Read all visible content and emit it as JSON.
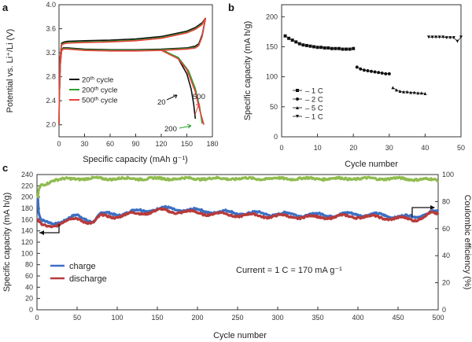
{
  "panel_labels": {
    "a": "a",
    "b": "b",
    "c": "c"
  },
  "chart_data": [
    {
      "panel": "a",
      "type": "line",
      "xlabel": "Specific capacity (mAh g⁻¹)",
      "ylabel": "Potential vs. Li⁺/Li (V)",
      "xlim": [
        0,
        180
      ],
      "ylim": [
        1.8,
        4.0
      ],
      "xticks": [
        "0",
        "30",
        "60",
        "90",
        "120",
        "150",
        "180"
      ],
      "yticks": [
        "2.0",
        "2.4",
        "2.8",
        "3.2",
        "3.6",
        "4.0"
      ],
      "legend_position": "center-left",
      "series": [
        {
          "name": "20th cycle",
          "base": "20",
          "sup": "th",
          "rest": " cycle",
          "color": "#111111",
          "charge_x": [
            0,
            0.5,
            1.2,
            3,
            6,
            10,
            30,
            60,
            90,
            120,
            150,
            160,
            168,
            172
          ],
          "charge_y": [
            2.0,
            2.6,
            3.1,
            3.36,
            3.38,
            3.39,
            3.4,
            3.41,
            3.43,
            3.47,
            3.56,
            3.62,
            3.7,
            3.78
          ],
          "discharge_x": [
            172,
            168,
            164,
            160,
            150,
            120,
            90,
            60,
            30,
            10,
            5,
            3,
            1.5,
            0.5
          ],
          "discharge_y": [
            3.78,
            3.5,
            3.35,
            3.31,
            3.28,
            3.26,
            3.25,
            3.25,
            3.26,
            3.28,
            3.28,
            3.25,
            3.0,
            2.5
          ],
          "discharge_tail_x": [
            120,
            140,
            150,
            155,
            158,
            160
          ],
          "discharge_tail_y": [
            3.26,
            3.1,
            2.85,
            2.6,
            2.35,
            2.1
          ]
        },
        {
          "name": "200th cycle",
          "base": "200",
          "sup": "th",
          "rest": " cycle",
          "color": "#2ca02c",
          "charge_x": [
            0,
            0.5,
            1.2,
            3,
            6,
            10,
            30,
            60,
            90,
            120,
            150,
            160,
            168,
            172
          ],
          "charge_y": [
            2.0,
            2.6,
            3.1,
            3.34,
            3.36,
            3.37,
            3.38,
            3.39,
            3.41,
            3.45,
            3.54,
            3.6,
            3.68,
            3.78
          ],
          "discharge_x": [
            172,
            168,
            164,
            160,
            150,
            120,
            90,
            60,
            30,
            10,
            5,
            3,
            1.5,
            0.5
          ],
          "discharge_y": [
            3.78,
            3.48,
            3.33,
            3.29,
            3.27,
            3.25,
            3.24,
            3.24,
            3.25,
            3.27,
            3.27,
            3.24,
            3.0,
            2.5
          ],
          "discharge_tail_x": [
            120,
            140,
            152,
            160,
            165,
            168
          ],
          "discharge_tail_y": [
            3.25,
            3.12,
            2.9,
            2.6,
            2.3,
            2.02
          ]
        },
        {
          "name": "500th cycle",
          "base": "500",
          "sup": "th",
          "rest": " cycle",
          "color": "#e8413c",
          "charge_x": [
            0,
            0.5,
            1.2,
            3,
            6,
            10,
            30,
            60,
            90,
            120,
            150,
            160,
            168,
            172
          ],
          "charge_y": [
            2.0,
            2.6,
            3.1,
            3.33,
            3.35,
            3.36,
            3.37,
            3.38,
            3.4,
            3.44,
            3.53,
            3.59,
            3.67,
            3.78
          ],
          "discharge_x": [
            172,
            168,
            164,
            160,
            150,
            120,
            90,
            60,
            30,
            10,
            5,
            3,
            1.5,
            0.5
          ],
          "discharge_y": [
            3.78,
            3.47,
            3.32,
            3.28,
            3.26,
            3.24,
            3.23,
            3.23,
            3.24,
            3.26,
            3.26,
            3.23,
            3.0,
            2.5
          ],
          "discharge_tail_x": [
            120,
            140,
            150,
            160,
            165,
            170
          ],
          "discharge_tail_y": [
            3.24,
            3.1,
            2.92,
            2.55,
            2.25,
            2.0
          ]
        }
      ],
      "annotations": [
        {
          "text": "20",
          "color": "#111111"
        },
        {
          "text": "200",
          "color": "#2ca02c"
        },
        {
          "text": "500",
          "color": "#e8413c"
        }
      ]
    },
    {
      "panel": "b",
      "type": "scatter",
      "xlabel": "Cycle number",
      "ylabel": "Specific capacity (mA h/g)",
      "xlim": [
        0,
        50
      ],
      "ylim": [
        0,
        220
      ],
      "xticks": [
        "0",
        "10",
        "20",
        "30",
        "40",
        "50"
      ],
      "yticks": [
        "0",
        "50",
        "100",
        "150",
        "200"
      ],
      "legend_position": "center-left",
      "series": [
        {
          "name": "1 C",
          "marker": "square",
          "x": [
            1,
            2,
            3,
            4,
            5,
            6,
            7,
            8,
            9,
            10,
            11,
            12,
            13,
            14,
            15,
            16,
            17,
            18,
            19,
            20
          ],
          "y": [
            168,
            164,
            161,
            158,
            155,
            153,
            152,
            151,
            150,
            149,
            149,
            148,
            148,
            147,
            147,
            147,
            146,
            146,
            146,
            147
          ]
        },
        {
          "name": "2 C",
          "marker": "circle",
          "x": [
            21,
            22,
            23,
            24,
            25,
            26,
            27,
            28,
            29,
            30
          ],
          "y": [
            116,
            113,
            111,
            110,
            109,
            108,
            107,
            106,
            105,
            105
          ]
        },
        {
          "name": "5 C",
          "marker": "triangle-up",
          "x": [
            31,
            32,
            33,
            34,
            35,
            36,
            37,
            38,
            39,
            40
          ],
          "y": [
            82,
            78,
            76,
            75,
            75,
            74,
            74,
            73,
            73,
            72
          ]
        },
        {
          "name": "1 C",
          "marker": "triangle-down",
          "x": [
            41,
            42,
            43,
            44,
            45,
            46,
            47,
            48,
            49,
            50
          ],
          "y": [
            166,
            166,
            166,
            166,
            166,
            165,
            165,
            165,
            159,
            166
          ]
        }
      ]
    },
    {
      "panel": "c",
      "type": "scatter",
      "xlabel": "Cycle number",
      "ylabel": "Specific capacity (mA h/g)",
      "y2label": "Coulombic efficiency (%)",
      "xlim": [
        0,
        500
      ],
      "ylim": [
        0,
        240
      ],
      "y2lim": [
        0,
        100
      ],
      "xticks": [
        "0",
        "50",
        "100",
        "150",
        "200",
        "250",
        "300",
        "350",
        "400",
        "450",
        "500"
      ],
      "yticks": [
        "0",
        "20",
        "40",
        "60",
        "80",
        "100",
        "120",
        "140",
        "160",
        "180",
        "200",
        "220",
        "240"
      ],
      "y2ticks": [
        "0",
        "20",
        "40",
        "60",
        "80",
        "100"
      ],
      "legend_position": "lower-left",
      "annotation": "Current = 1 C = 170 mA g⁻¹",
      "series": [
        {
          "name": "charge",
          "color": "#3b6fc4",
          "axis": "left",
          "x": [
            0,
            2,
            5,
            10,
            20,
            30,
            50,
            70,
            80,
            100,
            130,
            155,
            200,
            250,
            300,
            350,
            400,
            450,
            470,
            490,
            500
          ],
          "y": [
            230,
            172,
            158,
            154,
            153,
            158,
            166,
            158,
            170,
            170,
            176,
            180,
            176,
            172,
            170,
            168,
            170,
            166,
            164,
            174,
            172
          ]
        },
        {
          "name": "discharge",
          "color": "#b83a3a",
          "axis": "left",
          "x": [
            0,
            2,
            5,
            10,
            20,
            30,
            50,
            70,
            80,
            100,
            130,
            155,
            200,
            250,
            300,
            350,
            400,
            450,
            470,
            490,
            500
          ],
          "y": [
            165,
            155,
            150,
            148,
            150,
            154,
            162,
            154,
            166,
            166,
            172,
            176,
            172,
            168,
            166,
            164,
            166,
            162,
            160,
            170,
            168
          ]
        },
        {
          "name": "coulombic efficiency",
          "color": "#8fbc4f",
          "axis": "right",
          "x": [
            0,
            2,
            5,
            10,
            20,
            50,
            100,
            150,
            200,
            250,
            300,
            350,
            400,
            450,
            500
          ],
          "y": [
            75,
            88,
            92,
            93,
            96,
            97,
            97,
            97,
            97,
            97,
            97,
            97,
            97,
            97,
            96
          ]
        }
      ]
    }
  ]
}
